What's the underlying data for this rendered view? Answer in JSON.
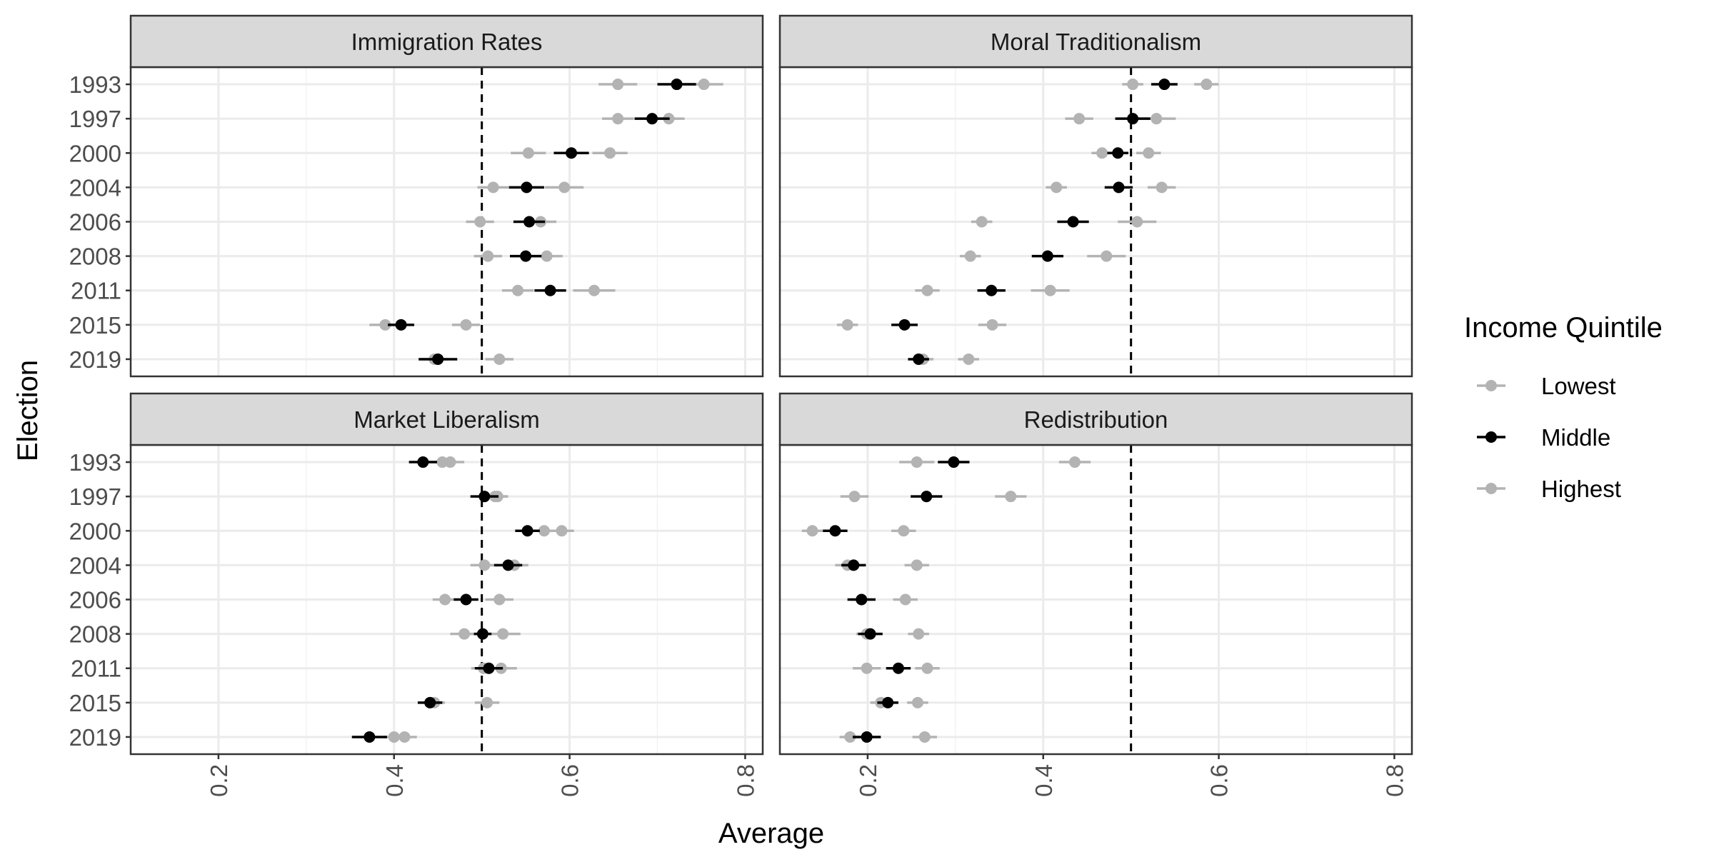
{
  "chart_data": {
    "type": "scatter",
    "xlabel": "Average",
    "ylabel": "Election",
    "xlim": [
      0.1,
      0.82
    ],
    "x_ticks": [
      "0.2",
      "0.4",
      "0.6",
      "0.8"
    ],
    "elections": [
      "1993",
      "1997",
      "2000",
      "2004",
      "2006",
      "2008",
      "2011",
      "2015",
      "2019"
    ],
    "reference_line": 0.5,
    "grid": true,
    "legend": {
      "title": "Income Quintile",
      "position": "right",
      "entries": [
        {
          "name": "Lowest",
          "color": "#b3b3b3"
        },
        {
          "name": "Middle",
          "color": "#000000"
        },
        {
          "name": "Highest",
          "color": "#b3b3b3"
        }
      ]
    },
    "panels": [
      {
        "title": "Immigration Rates",
        "series": [
          {
            "name": "Lowest",
            "values": [
              0.655,
              0.655,
              0.553,
              0.513,
              0.498,
              0.507,
              0.541,
              0.39,
              0.446
            ],
            "err": [
              0.022,
              0.018,
              0.02,
              0.018,
              0.016,
              0.016,
              0.018,
              0.018,
              0.016
            ]
          },
          {
            "name": "Middle",
            "values": [
              0.722,
              0.694,
              0.602,
              0.551,
              0.554,
              0.55,
              0.578,
              0.408,
              0.45
            ],
            "err": [
              0.022,
              0.02,
              0.02,
              0.02,
              0.018,
              0.018,
              0.018,
              0.015,
              0.022
            ]
          },
          {
            "name": "Highest",
            "values": [
              0.753,
              0.713,
              0.646,
              0.594,
              0.567,
              0.574,
              0.628,
              0.482,
              0.52
            ],
            "err": [
              0.022,
              0.018,
              0.02,
              0.022,
              0.018,
              0.018,
              0.024,
              0.016,
              0.016
            ]
          }
        ]
      },
      {
        "title": "Moral Traditionalism",
        "series": [
          {
            "name": "Lowest",
            "values": [
              0.502,
              0.441,
              0.467,
              0.415,
              0.33,
              0.317,
              0.268,
              0.177,
              0.263
            ],
            "err": [
              0.012,
              0.016,
              0.012,
              0.012,
              0.012,
              0.012,
              0.014,
              0.012,
              0.012
            ]
          },
          {
            "name": "Middle",
            "values": [
              0.538,
              0.502,
              0.485,
              0.486,
              0.434,
              0.405,
              0.341,
              0.242,
              0.258
            ],
            "err": [
              0.015,
              0.02,
              0.012,
              0.016,
              0.018,
              0.018,
              0.016,
              0.015,
              0.012
            ]
          },
          {
            "name": "Highest",
            "values": [
              0.586,
              0.529,
              0.52,
              0.535,
              0.507,
              0.472,
              0.408,
              0.342,
              0.315
            ],
            "err": [
              0.014,
              0.022,
              0.014,
              0.016,
              0.022,
              0.022,
              0.022,
              0.016,
              0.012
            ]
          }
        ]
      },
      {
        "title": "Market Liberalism",
        "series": [
          {
            "name": "Lowest",
            "values": [
              0.455,
              0.515,
              0.571,
              0.503,
              0.458,
              0.48,
              0.502,
              0.446,
              0.4
            ],
            "err": [
              0.016,
              0.014,
              0.016,
              0.016,
              0.014,
              0.016,
              0.014,
              0.012,
              0.012
            ]
          },
          {
            "name": "Middle",
            "values": [
              0.433,
              0.503,
              0.552,
              0.53,
              0.482,
              0.501,
              0.508,
              0.441,
              0.372
            ],
            "err": [
              0.016,
              0.016,
              0.014,
              0.016,
              0.014,
              0.01,
              0.016,
              0.014,
              0.02
            ]
          },
          {
            "name": "Highest",
            "values": [
              0.464,
              0.518,
              0.591,
              0.537,
              0.52,
              0.524,
              0.522,
              0.506,
              0.412
            ],
            "err": [
              0.016,
              0.012,
              0.014,
              0.016,
              0.016,
              0.02,
              0.018,
              0.014,
              0.014
            ]
          }
        ]
      },
      {
        "title": "Redistribution",
        "series": [
          {
            "name": "Lowest",
            "values": [
              0.256,
              0.185,
              0.137,
              0.177,
              0.193,
              0.199,
              0.199,
              0.215,
              0.18
            ],
            "err": [
              0.02,
              0.016,
              0.012,
              0.014,
              0.012,
              0.012,
              0.016,
              0.012,
              0.012
            ]
          },
          {
            "name": "Middle",
            "values": [
              0.298,
              0.267,
              0.163,
              0.184,
              0.193,
              0.203,
              0.235,
              0.223,
              0.199
            ],
            "err": [
              0.018,
              0.018,
              0.014,
              0.014,
              0.016,
              0.014,
              0.014,
              0.012,
              0.016
            ]
          },
          {
            "name": "Highest",
            "values": [
              0.436,
              0.363,
              0.241,
              0.256,
              0.243,
              0.258,
              0.268,
              0.257,
              0.265
            ],
            "err": [
              0.018,
              0.018,
              0.014,
              0.014,
              0.014,
              0.012,
              0.014,
              0.012,
              0.014
            ]
          }
        ]
      }
    ]
  }
}
